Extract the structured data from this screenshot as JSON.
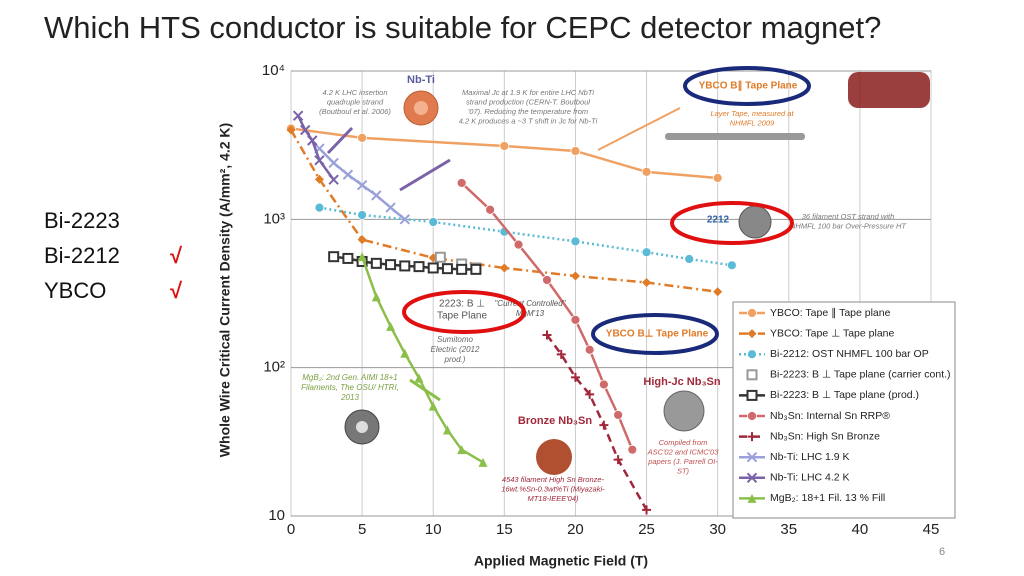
{
  "slide": {
    "title": "Which HTS conductor is suitable for CEPC detector magnet?",
    "items": [
      {
        "label": "Bi-2223"
      },
      {
        "label": "Bi-2212",
        "mark": "√"
      },
      {
        "label": "YBCO",
        "mark": "√"
      }
    ],
    "page_number": 6
  },
  "chart_data": {
    "type": "line",
    "log_y": true,
    "grid": true,
    "legend": "lower-right",
    "x_label": "Applied Magnetic Field (T)",
    "y_label": "Whole Wire Critical Current Density (A/mm², 4.2 K)",
    "xlim": [
      0,
      45
    ],
    "xticks": [
      0,
      5,
      10,
      15,
      20,
      25,
      30,
      35,
      40,
      45
    ],
    "ylim": [
      10,
      10000
    ],
    "yticks": [
      {
        "value": 10,
        "label": "10"
      },
      {
        "value": 100,
        "label": "10²"
      },
      {
        "value": 1000,
        "label": "10³"
      },
      {
        "value": 10000,
        "label": "10⁴"
      }
    ],
    "series": [
      {
        "name": "YBCO: Tape ∥ Tape plane",
        "color": "#f0a060",
        "marker": "circle",
        "dash": "solid",
        "x": [
          0,
          5,
          15,
          20,
          25,
          30
        ],
        "values": [
          4100,
          3540,
          3120,
          2890,
          2090,
          1900
        ]
      },
      {
        "name": "YBCO: Tape ⊥ Tape plane",
        "color": "#e07b28",
        "marker": "diamond",
        "dash": "dashdot",
        "x": [
          0,
          2,
          5,
          10,
          15,
          20,
          25,
          30
        ],
        "values": [
          4000,
          1860,
          730,
          550,
          470,
          415,
          375,
          325
        ]
      },
      {
        "name": "Bi-2212: OST NHMFL 100 bar OP",
        "color": "#5bbad5",
        "marker": "circle",
        "dash": "dotted",
        "x": [
          2,
          5,
          10,
          15,
          20,
          25,
          28,
          31
        ],
        "values": [
          1200,
          1070,
          960,
          825,
          710,
          600,
          540,
          490
        ]
      },
      {
        "name": "Bi-2223: B ⊥ Tape plane (carrier cont.)",
        "color": "#999999",
        "marker": "square",
        "dash": "none",
        "x": [
          10.5,
          12,
          13
        ],
        "values": [
          555,
          500,
          470
        ]
      },
      {
        "name": "Bi-2223: B ⊥ Tape plane (prod.)",
        "color": "#333333",
        "marker": "square",
        "dash": "solid",
        "x": [
          3,
          4,
          5,
          6,
          7,
          8,
          9,
          10,
          11,
          12,
          13
        ],
        "values": [
          560,
          545,
          520,
          505,
          495,
          485,
          480,
          470,
          465,
          460,
          460
        ]
      },
      {
        "name": "Nb₃Sn: Internal Sn RRP®",
        "color": "#d06a6a",
        "marker": "circle",
        "dash": "solid",
        "x": [
          12,
          14,
          16,
          18,
          20,
          21,
          22,
          23,
          24
        ],
        "values": [
          1760,
          1160,
          675,
          390,
          210,
          132,
          77,
          48,
          28
        ]
      },
      {
        "name": "Nb₃Sn: High Sn Bronze",
        "color": "#a0283a",
        "marker": "plus",
        "dash": "dashed",
        "x": [
          18,
          19,
          20,
          21,
          22,
          23,
          25
        ],
        "values": [
          166,
          123,
          86,
          66,
          41,
          24,
          11
        ]
      },
      {
        "name": "Nb-Ti: LHC 1.9 K",
        "color": "#9aa0d8",
        "marker": "x",
        "dash": "solid",
        "x": [
          2,
          3,
          4,
          5,
          6,
          7,
          8
        ],
        "values": [
          3000,
          2400,
          2000,
          1700,
          1450,
          1200,
          1000
        ]
      },
      {
        "name": "Nb-Ti: LHC 4.2 K",
        "color": "#7a62a8",
        "marker": "x",
        "dash": "solid",
        "x": [
          0.5,
          1,
          1.5,
          2,
          3
        ],
        "values": [
          5000,
          4000,
          3400,
          2500,
          1850
        ]
      },
      {
        "name": "MgB₂: 18+1 Fil. 13 % Fill",
        "color": "#8cbf4a",
        "marker": "triangle",
        "dash": "solid",
        "x": [
          5,
          6,
          7,
          8,
          9,
          10,
          11,
          12,
          13.5
        ],
        "values": [
          560,
          300,
          190,
          125,
          85,
          55,
          38,
          28,
          23
        ]
      }
    ],
    "annotations": [
      {
        "lines": [
          "Nb-Ti"
        ]
      },
      {
        "lines": [
          "4.2 K LHC insertion",
          "quadruple strand",
          "(Boutboul et al. 2006)"
        ]
      },
      {
        "lines": [
          "Maximal Jc at 1.9 K for entire LHC NbTi",
          "strand production (CERN-T. Boutboul",
          "'07). Reducing the temperature from",
          "4.2 K produces a ~3 T shift in Jc for Nb-Ti"
        ]
      },
      {
        "lines": [
          "YBCO B∥ Tape Plane"
        ]
      },
      {
        "lines": [
          "Layer Tape, measured at",
          "NHMFL 2009"
        ]
      },
      {
        "lines": [
          "2212"
        ]
      },
      {
        "lines": [
          "36 filament OST strand with",
          "NHMFL 100 bar Over-Pressure HT"
        ]
      },
      {
        "lines": [
          "2223: B ⊥",
          "Tape Plane"
        ]
      },
      {
        "lines": [
          "\"Current Controlled\"",
          "MgM'13"
        ]
      },
      {
        "lines": [
          "Sumitomo",
          "Electric (2012",
          "prod.)"
        ]
      },
      {
        "lines": [
          "YBCO B⊥ Tape Plane"
        ]
      },
      {
        "lines": [
          "High-Jc Nb₃Sn"
        ]
      },
      {
        "lines": [
          "Compiled from",
          "ASC'02 and ICMC'03",
          "papers (J. Parrell OI-",
          "ST)"
        ]
      },
      {
        "lines": [
          "Bronze Nb₃Sn"
        ]
      },
      {
        "lines": [
          "4543 filament High Sn Bronze-",
          "16wt.%Sn-0.3wt%Ti (Miyazaki-",
          "MT18-IEEE'04)"
        ]
      },
      {
        "lines": [
          "MgB₂: 2nd Gen. AIMI 18+1",
          "Filaments, The OSU/ HTRI,",
          "2013"
        ]
      }
    ]
  }
}
